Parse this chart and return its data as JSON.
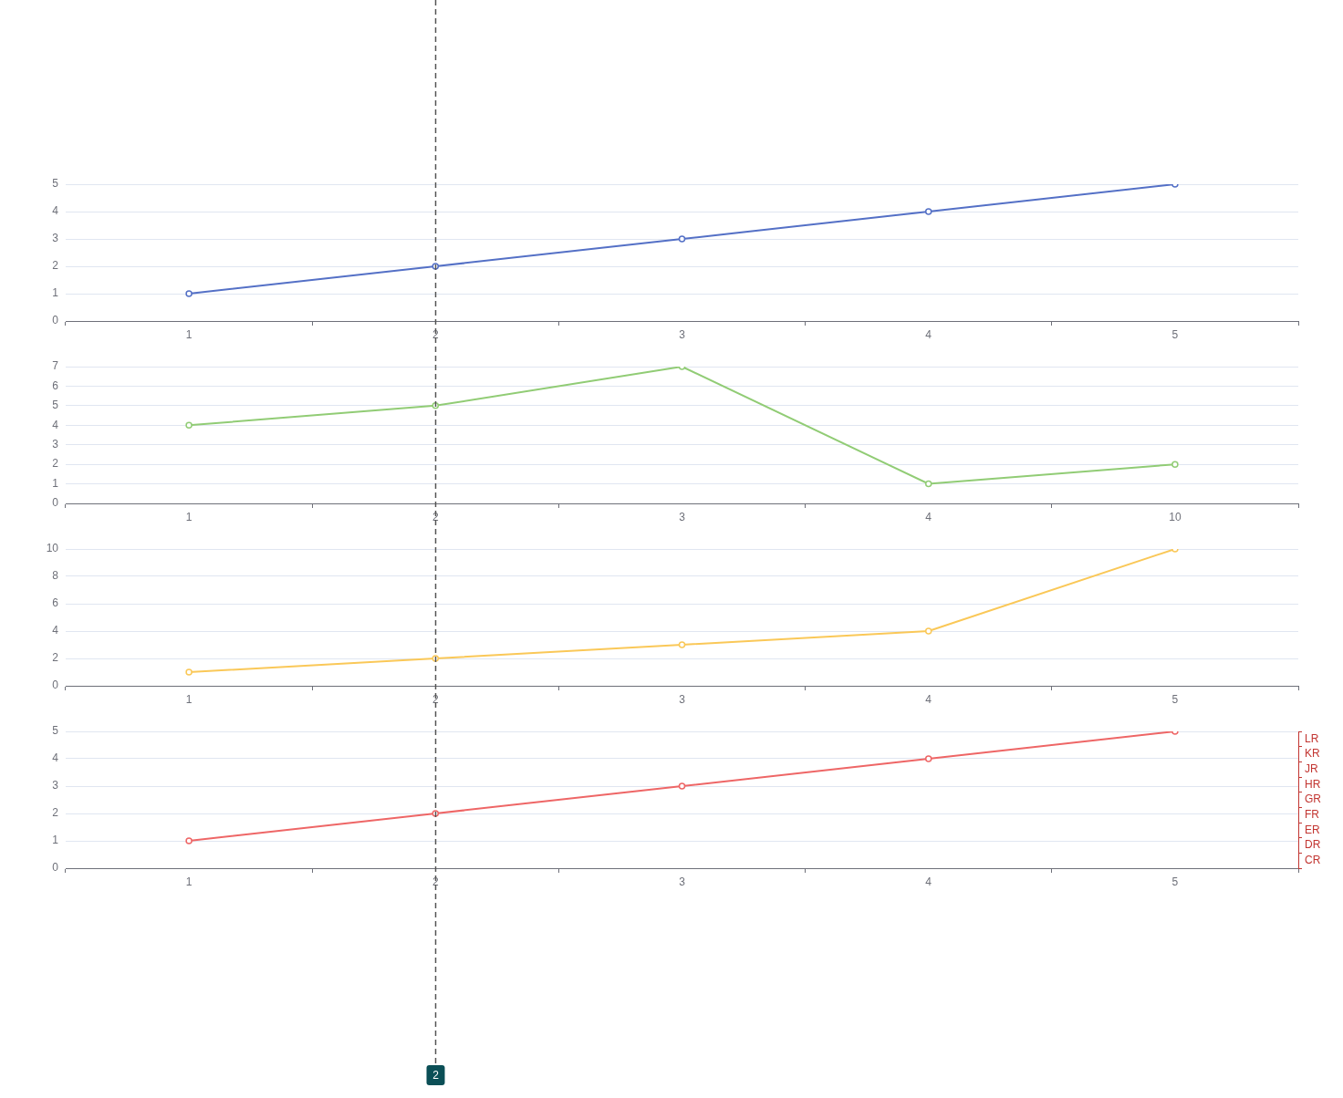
{
  "chart_data": [
    {
      "type": "line",
      "categories": [
        "1",
        "2",
        "3",
        "4",
        "5"
      ],
      "values": [
        1,
        2,
        3,
        4,
        5
      ],
      "color": "#5470c6",
      "ylim": [
        0,
        5
      ],
      "yticks": [
        0,
        1,
        2,
        3,
        4,
        5
      ],
      "grid": "y",
      "marker": "circle",
      "line_style": "solid",
      "ref_lines": [
        {
          "axis": "x",
          "value": "2",
          "color": "#555555",
          "line_style": "dashed"
        }
      ]
    },
    {
      "type": "line",
      "categories": [
        "1",
        "2",
        "3",
        "4",
        "10"
      ],
      "values": [
        4,
        5,
        7,
        1,
        2
      ],
      "color": "#91cc75",
      "ylim": [
        0,
        7
      ],
      "yticks": [
        0,
        1,
        2,
        3,
        4,
        5,
        6,
        7
      ],
      "grid": "y",
      "marker": "circle",
      "line_style": "solid",
      "ref_lines": [
        {
          "axis": "x",
          "value": "2",
          "color": "#555555",
          "line_style": "dashed"
        }
      ]
    },
    {
      "type": "line",
      "categories": [
        "1",
        "2",
        "3",
        "4",
        "5"
      ],
      "values": [
        1,
        2,
        3,
        4,
        10
      ],
      "color": "#fac858",
      "ylim": [
        0,
        10
      ],
      "yticks": [
        0,
        2,
        4,
        6,
        8,
        10
      ],
      "grid": "y",
      "marker": "circle",
      "line_style": "solid",
      "ref_lines": [
        {
          "axis": "x",
          "value": "2",
          "color": "#555555",
          "line_style": "dashed"
        }
      ]
    },
    {
      "type": "line",
      "categories": [
        "1",
        "2",
        "3",
        "4",
        "5"
      ],
      "values": [
        1,
        2,
        3,
        4,
        5
      ],
      "color": "#ee6666",
      "ylim": [
        0,
        5
      ],
      "yticks": [
        0,
        1,
        2,
        3,
        4,
        5
      ],
      "y2_categories": [
        "LR",
        "KR",
        "JR",
        "HR",
        "GR",
        "FR",
        "ER",
        "DR",
        "CR"
      ],
      "grid": "y",
      "marker": "circle",
      "line_style": "solid",
      "ref_lines": [
        {
          "axis": "x",
          "value": "2",
          "label": "2",
          "color": "#555555",
          "line_style": "dashed"
        }
      ]
    }
  ]
}
